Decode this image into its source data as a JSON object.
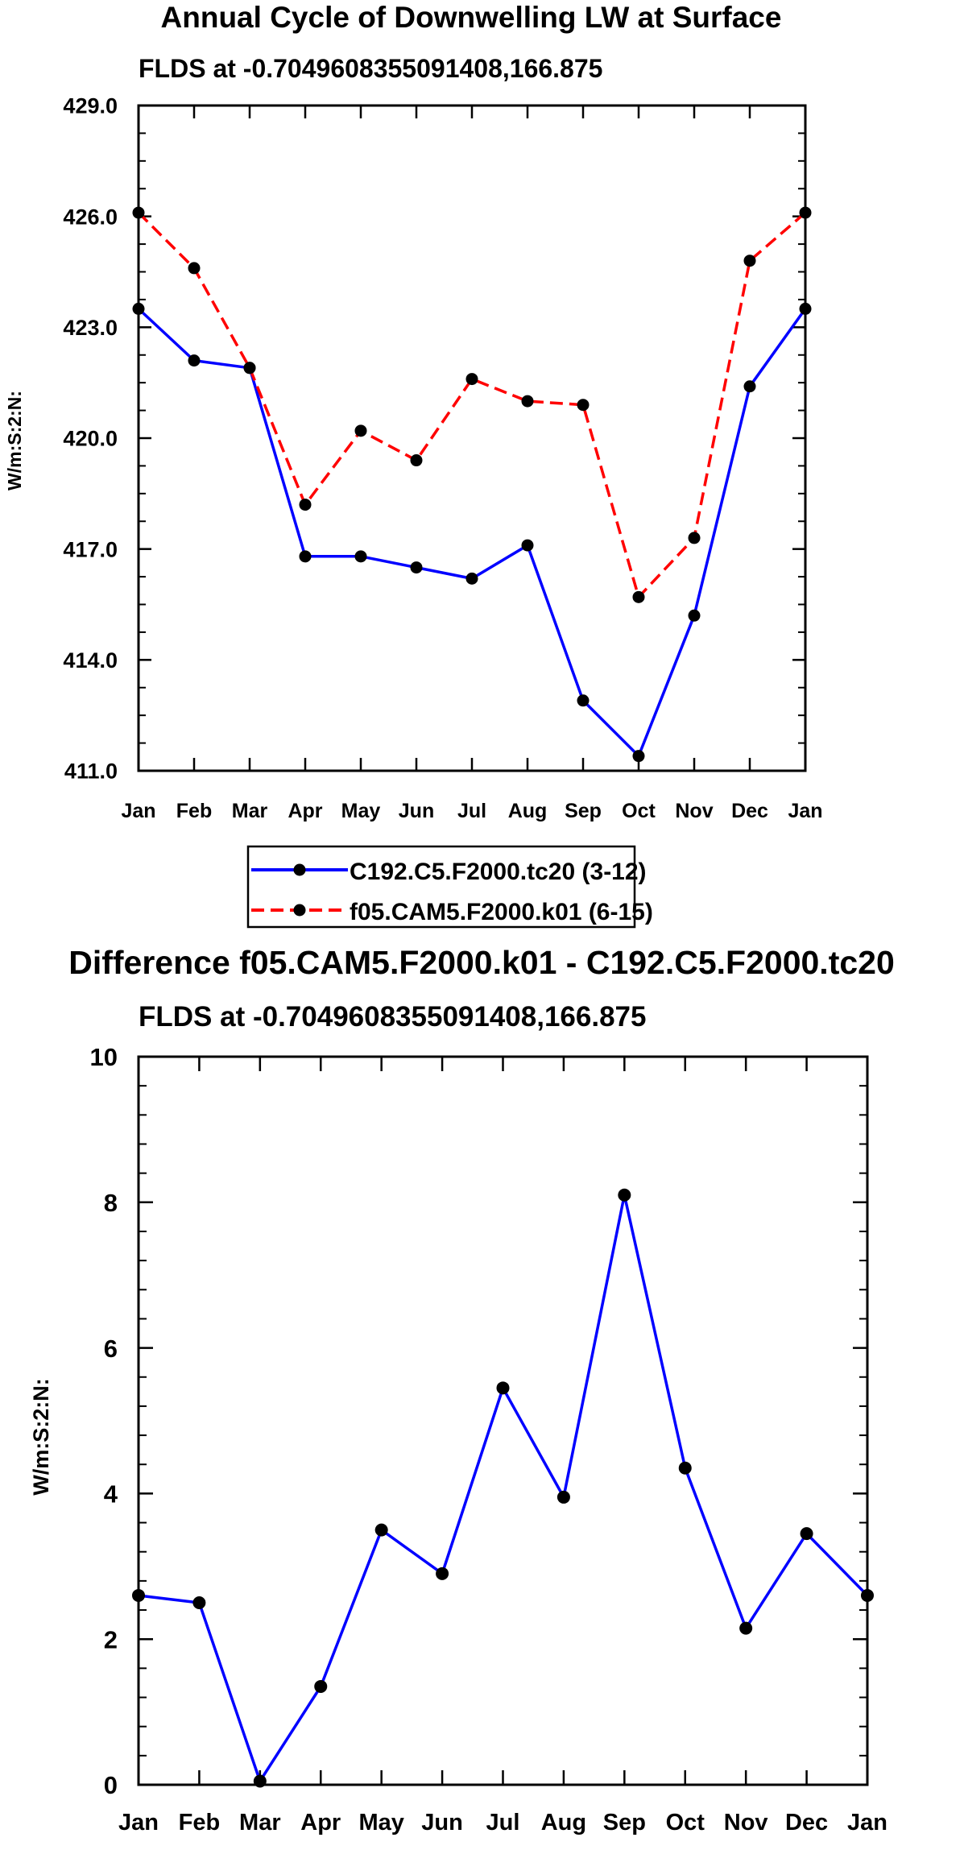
{
  "chart_data": [
    {
      "type": "line",
      "title": "Annual Cycle of Downwelling LW at Surface",
      "subtitle": "FLDS at -0.7049608355091408,166.875",
      "xlabel": "",
      "ylabel": "W/m:S:2:N:",
      "categories": [
        "Jan",
        "Feb",
        "Mar",
        "Apr",
        "May",
        "Jun",
        "Jul",
        "Aug",
        "Sep",
        "Oct",
        "Nov",
        "Dec",
        "Jan"
      ],
      "ylim": [
        411.0,
        429.0
      ],
      "yticks": [
        "411.0",
        "414.0",
        "417.0",
        "420.0",
        "423.0",
        "426.0",
        "429.0"
      ],
      "series": [
        {
          "name": "C192.C5.F2000.tc20 (3-12)",
          "color": "#0000ff",
          "dash": "solid",
          "values": [
            423.5,
            422.1,
            421.9,
            416.8,
            416.8,
            416.5,
            416.2,
            417.1,
            412.9,
            411.4,
            415.2,
            421.4,
            423.5
          ]
        },
        {
          "name": "f05.CAM5.F2000.k01 (6-15)",
          "color": "#ff0000",
          "dash": "dashed",
          "values": [
            426.1,
            424.6,
            421.9,
            418.2,
            420.2,
            419.4,
            421.6,
            421.0,
            420.9,
            415.7,
            417.3,
            424.8,
            426.1
          ]
        }
      ],
      "legend": "bottom-center",
      "grid": false
    },
    {
      "type": "line",
      "title": "Difference f05.CAM5.F2000.k01 - C192.C5.F2000.tc20",
      "subtitle": "FLDS at -0.7049608355091408,166.875",
      "xlabel": "",
      "ylabel": "W/m:S:2:N:",
      "categories": [
        "Jan",
        "Feb",
        "Mar",
        "Apr",
        "May",
        "Jun",
        "Jul",
        "Aug",
        "Sep",
        "Oct",
        "Nov",
        "Dec",
        "Jan"
      ],
      "ylim": [
        0,
        10
      ],
      "yticks": [
        "0",
        "2",
        "4",
        "6",
        "8",
        "10"
      ],
      "series": [
        {
          "name": "Difference",
          "color": "#0000ff",
          "dash": "solid",
          "values": [
            2.6,
            2.5,
            0.05,
            1.35,
            3.5,
            2.9,
            5.45,
            3.95,
            8.1,
            4.35,
            2.15,
            3.45,
            2.6
          ]
        }
      ],
      "grid": false
    }
  ]
}
